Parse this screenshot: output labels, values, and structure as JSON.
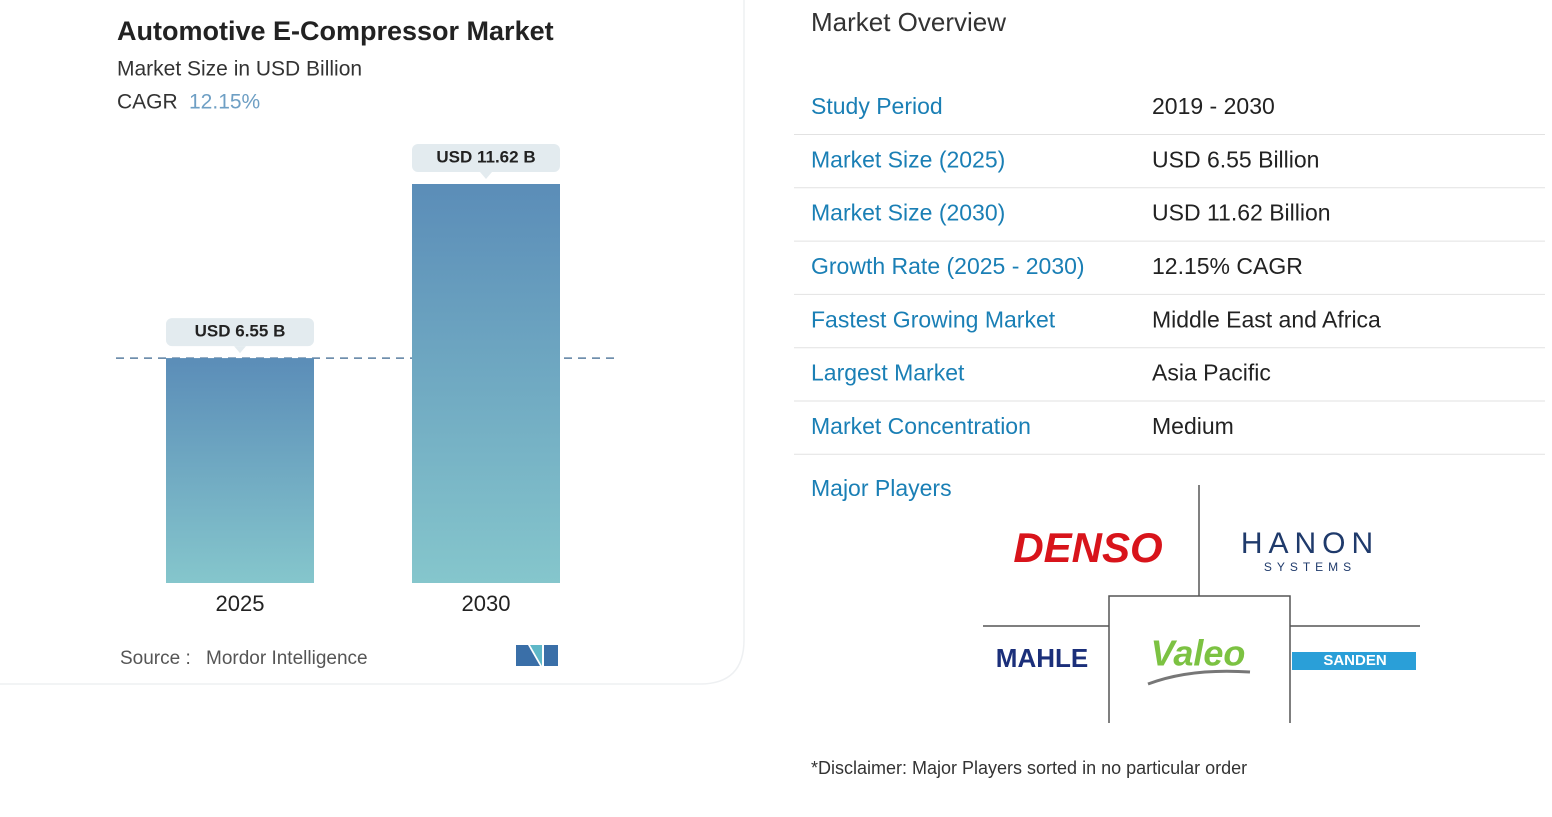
{
  "chart_data": {
    "type": "bar",
    "title": "Automotive E-Compressor Market",
    "subtitle": "Market Size in USD Billion",
    "cagr_label": "CAGR",
    "cagr_value": "12.15%",
    "categories": [
      "2025",
      "2030"
    ],
    "values": [
      6.55,
      11.62
    ],
    "value_labels": [
      "USD 6.55 B",
      "USD 11.62 B"
    ],
    "color_top": "#5b8db8",
    "color_bottom": "#85c6cc",
    "source_label": "Source :",
    "source": "Mordor Intelligence"
  },
  "overview": {
    "title": "Market Overview",
    "rows": [
      [
        "Study Period",
        "2019 - 2030"
      ],
      [
        "Market Size (2025)",
        "USD 6.55 Billion"
      ],
      [
        "Market Size (2030)",
        "USD 11.62 Billion"
      ],
      [
        "Growth Rate (2025 - 2030)",
        "12.15% CAGR"
      ],
      [
        "Fastest Growing Market",
        "Middle East and Africa"
      ],
      [
        "Largest Market",
        "Asia Pacific"
      ],
      [
        "Market Concentration",
        "Medium"
      ]
    ]
  },
  "major_players": {
    "label": "Major Players",
    "logos": [
      "DENSO",
      "HANON",
      "MAHLE",
      "Valeo",
      "SANDEN"
    ],
    "hanon_sub": "SYSTEMS",
    "disclaimer": "*Disclaimer: Major Players sorted in no particular order"
  }
}
